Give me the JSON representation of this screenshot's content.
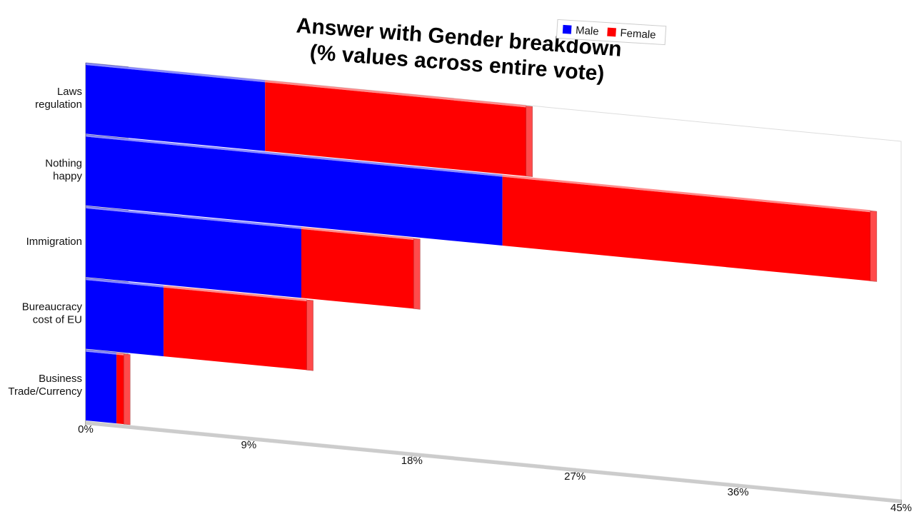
{
  "chart_data": {
    "type": "bar",
    "orientation": "horizontal",
    "stacked": true,
    "title": [
      "Answer with Gender breakdown",
      "(% values across entire vote)"
    ],
    "categories": [
      [
        "Laws",
        "regulation"
      ],
      [
        "Nothing",
        "happy"
      ],
      [
        "Immigration"
      ],
      [
        "Bureaucracy",
        "cost of EU"
      ],
      [
        "Business",
        "Trade/Currency"
      ]
    ],
    "series": [
      {
        "name": "Male",
        "color": "#0000ff",
        "values": [
          9.9,
          23,
          11.9,
          4.3,
          1.7
        ]
      },
      {
        "name": "Female",
        "color": "#ff0000",
        "values": [
          14.4,
          20.3,
          6.2,
          7.9,
          0.4
        ]
      }
    ],
    "xlim": [
      0,
      45
    ],
    "xticks": [
      {
        "value": 0,
        "label": "0%"
      },
      {
        "value": 9,
        "label": "9%"
      },
      {
        "value": 18,
        "label": "18%"
      },
      {
        "value": 27,
        "label": "27%"
      },
      {
        "value": 36,
        "label": "36%"
      },
      {
        "value": 45,
        "label": "45%"
      }
    ],
    "legend": "top-right"
  }
}
